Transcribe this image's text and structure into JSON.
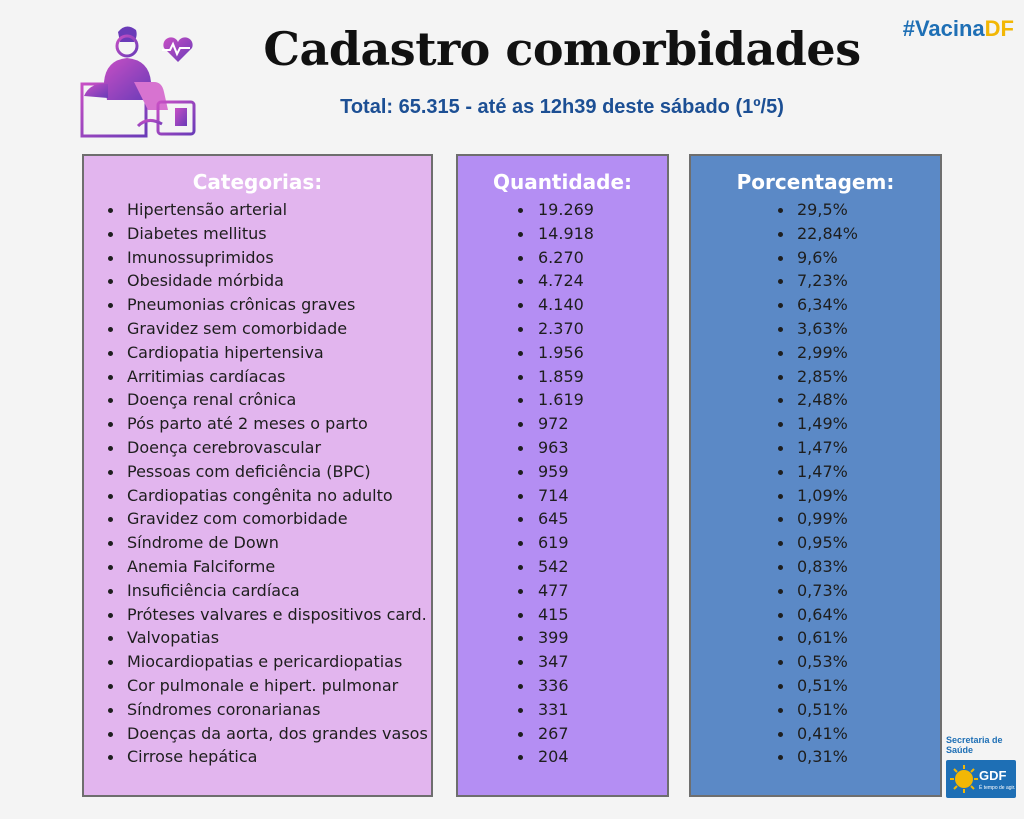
{
  "hashtag": {
    "main": "#Vacina",
    "accent": "DF"
  },
  "header": {
    "title": "Cadastro comorbidades",
    "subtitle": "Total: 65.315 - até as 12h39 deste sábado (1º/5)"
  },
  "columns": {
    "categories_label": "Categorias:",
    "quantity_label": "Quantidade:",
    "percentage_label": "Porcentagem:"
  },
  "rows": [
    {
      "categoria": "Hipertensão arterial",
      "quantidade": "19.269",
      "porcentagem": "29,5%"
    },
    {
      "categoria": "Diabetes mellitus",
      "quantidade": "14.918",
      "porcentagem": "22,84%"
    },
    {
      "categoria": "Imunossuprimidos",
      "quantidade": "6.270",
      "porcentagem": "9,6%"
    },
    {
      "categoria": "Obesidade mórbida",
      "quantidade": "4.724",
      "porcentagem": "7,23%"
    },
    {
      "categoria": "Pneumonias crônicas graves",
      "quantidade": "4.140",
      "porcentagem": "6,34%"
    },
    {
      "categoria": "Gravidez sem comorbidade",
      "quantidade": "2.370",
      "porcentagem": "3,63%"
    },
    {
      "categoria": "Cardiopatia hipertensiva",
      "quantidade": "1.956",
      "porcentagem": "2,99%"
    },
    {
      "categoria": "Arritimias cardíacas",
      "quantidade": "1.859",
      "porcentagem": "2,85%"
    },
    {
      "categoria": "Doença renal crônica",
      "quantidade": "1.619",
      "porcentagem": "2,48%"
    },
    {
      "categoria": "Pós parto até 2 meses o parto",
      "quantidade": "972",
      "porcentagem": "1,49%"
    },
    {
      "categoria": "Doença cerebrovascular",
      "quantidade": "963",
      "porcentagem": "1,47%"
    },
    {
      "categoria": "Pessoas com deficiência (BPC)",
      "quantidade": "959",
      "porcentagem": "1,47%"
    },
    {
      "categoria": "Cardiopatias congênita no adulto",
      "quantidade": "714",
      "porcentagem": "1,09%"
    },
    {
      "categoria": "Gravidez com comorbidade",
      "quantidade": "645",
      "porcentagem": "0,99%"
    },
    {
      "categoria": "Síndrome de Down",
      "quantidade": "619",
      "porcentagem": "0,95%"
    },
    {
      "categoria": "Anemia Falciforme",
      "quantidade": "542",
      "porcentagem": "0,83%"
    },
    {
      "categoria": "Insuficiência cardíaca",
      "quantidade": "477",
      "porcentagem": "0,73%"
    },
    {
      "categoria": "Próteses valvares e dispositivos card.",
      "quantidade": "415",
      "porcentagem": "0,64%"
    },
    {
      "categoria": "Valvopatias",
      "quantidade": "399",
      "porcentagem": "0,61%"
    },
    {
      "categoria": "Miocardiopatias e pericardiopatias",
      "quantidade": "347",
      "porcentagem": "0,53%"
    },
    {
      "categoria": "Cor pulmonale e hipert. pulmonar",
      "quantidade": "336",
      "porcentagem": "0,51%"
    },
    {
      "categoria": "Síndromes coronarianas",
      "quantidade": "331",
      "porcentagem": "0,51%"
    },
    {
      "categoria": "Doenças da aorta, dos grandes vasos",
      "quantidade": "267",
      "porcentagem": "0,41%"
    },
    {
      "categoria": "Cirrose hepática",
      "quantidade": "204",
      "porcentagem": "0,31%"
    }
  ],
  "footer": {
    "secretaria": "Secretaria de Saúde",
    "logo_text": "GDF",
    "logo_tagline": "É tempo de agir."
  },
  "icons": {
    "illustration": "doctor-blood-pressure-icon",
    "heart": "heart-pulse-icon",
    "logo": "gdf-logo-icon"
  },
  "colors": {
    "background": "#f4f4f4",
    "categories_panel": "#e2b5ee",
    "quantity_panel": "#b48ef3",
    "percentage_panel": "#5b89c6",
    "subtitle": "#1c4f94",
    "hashtag": "#1e6fb5",
    "hashtag_accent": "#f2b705"
  }
}
